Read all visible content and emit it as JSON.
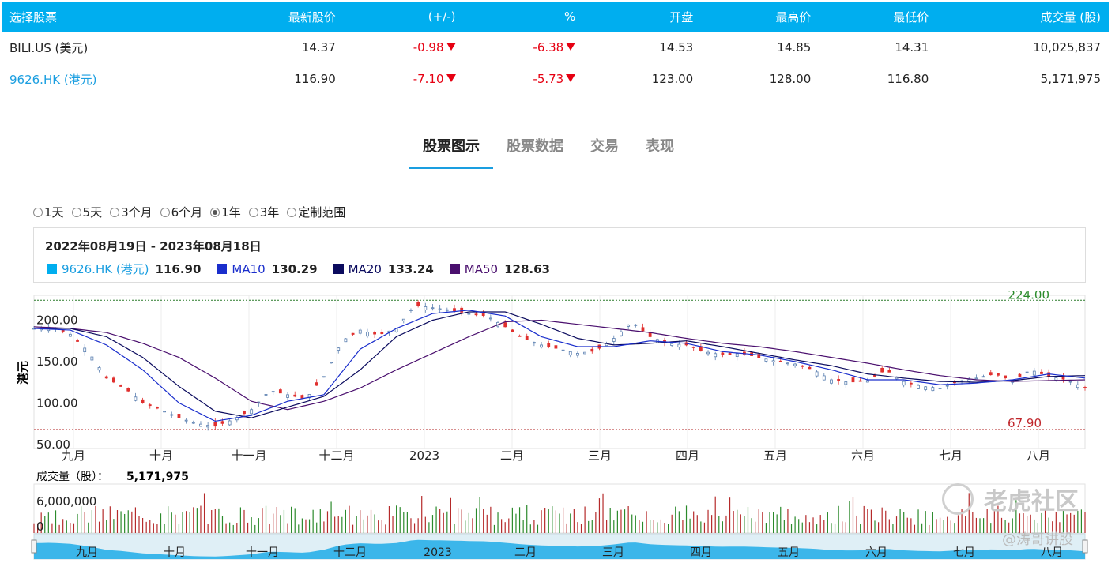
{
  "quote_table": {
    "headers": [
      "选择股票",
      "最新股价",
      "(+/-)",
      "%",
      "开盘",
      "最高价",
      "最低价",
      "成交量 (股)"
    ],
    "rows": [
      {
        "symbol": "BILI.US (美元)",
        "last": "14.37",
        "change": "-0.98",
        "pct": "-6.38",
        "open": "14.53",
        "high": "14.85",
        "low": "14.31",
        "volume": "10,025,837"
      },
      {
        "symbol": "9626.HK (港元)",
        "last": "116.90",
        "change": "-7.10",
        "pct": "-5.73",
        "open": "123.00",
        "high": "128.00",
        "low": "116.80",
        "volume": "5,171,975"
      }
    ]
  },
  "tabs": [
    "股票图示",
    "股票数据",
    "交易",
    "表现"
  ],
  "active_tab": "股票图示",
  "ranges": [
    "1天",
    "5天",
    "3个月",
    "6个月",
    "1年",
    "3年",
    "定制范围"
  ],
  "selected_range": "1年",
  "date_range": "2022年08月19日 - 2023年08月18日",
  "legend": [
    {
      "name": "9626.HK (港元)",
      "value": "116.90",
      "color": "#00aeef",
      "text_color": "#1a9ee0"
    },
    {
      "name": "MA10",
      "value": "130.29",
      "color": "#1a2ecc",
      "text_color": "#1a2ecc"
    },
    {
      "name": "MA20",
      "value": "133.24",
      "color": "#0b0b5e",
      "text_color": "#0b0b5e"
    },
    {
      "name": "MA50",
      "value": "128.63",
      "color": "#4a0f6e",
      "text_color": "#4a0f6e"
    }
  ],
  "volume_label": "成交量（股）：",
  "volume_value": "5,171,975",
  "watermark": {
    "brand": "老虎社区",
    "author": "@涛哥讲股"
  },
  "chart_data": {
    "type": "line",
    "ylabel": "港元",
    "yticks": [
      "200.00",
      "150.00",
      "100.00",
      "50.00"
    ],
    "ylim": [
      45,
      230
    ],
    "max_label": "224.00",
    "min_label": "67.90",
    "max_value": 224.0,
    "min_value": 67.9,
    "xticks": [
      "九月",
      "十月",
      "十一月",
      "十二月",
      "2023",
      "二月",
      "三月",
      "四月",
      "五月",
      "六月",
      "七月",
      "八月"
    ],
    "nav_xticks": [
      "九月",
      "十月",
      "十一月",
      "十二月",
      "2023",
      "二月",
      "三月",
      "四月",
      "五月",
      "六月",
      "七月",
      "八月"
    ],
    "volume_yticks": [
      "6,000,000",
      "0"
    ],
    "price_anchors": [
      [
        0,
        190
      ],
      [
        5,
        192
      ],
      [
        10,
        183
      ],
      [
        15,
        162
      ],
      [
        20,
        130
      ],
      [
        25,
        118
      ],
      [
        30,
        100
      ],
      [
        35,
        92
      ],
      [
        40,
        82
      ],
      [
        45,
        75
      ],
      [
        50,
        72
      ],
      [
        55,
        80
      ],
      [
        60,
        92
      ],
      [
        65,
        115
      ],
      [
        70,
        110
      ],
      [
        75,
        105
      ],
      [
        80,
        132
      ],
      [
        85,
        175
      ],
      [
        90,
        188
      ],
      [
        95,
        182
      ],
      [
        100,
        190
      ],
      [
        105,
        218
      ],
      [
        110,
        215
      ],
      [
        115,
        212
      ],
      [
        120,
        208
      ],
      [
        125,
        205
      ],
      [
        130,
        192
      ],
      [
        135,
        178
      ],
      [
        140,
        170
      ],
      [
        145,
        165
      ],
      [
        150,
        160
      ],
      [
        155,
        163
      ],
      [
        160,
        178
      ],
      [
        165,
        198
      ],
      [
        170,
        180
      ],
      [
        175,
        172
      ],
      [
        180,
        170
      ],
      [
        185,
        162
      ],
      [
        190,
        158
      ],
      [
        195,
        160
      ],
      [
        200,
        155
      ],
      [
        205,
        150
      ],
      [
        210,
        147
      ],
      [
        215,
        140
      ],
      [
        220,
        128
      ],
      [
        225,
        125
      ],
      [
        230,
        127
      ],
      [
        235,
        140
      ],
      [
        240,
        126
      ],
      [
        245,
        120
      ],
      [
        250,
        118
      ],
      [
        255,
        126
      ],
      [
        260,
        130
      ],
      [
        265,
        135
      ],
      [
        270,
        127
      ],
      [
        275,
        140
      ],
      [
        280,
        132
      ],
      [
        285,
        128
      ],
      [
        290,
        118
      ]
    ],
    "ma10_anchors": [
      [
        0,
        190
      ],
      [
        10,
        188
      ],
      [
        20,
        170
      ],
      [
        30,
        140
      ],
      [
        40,
        100
      ],
      [
        50,
        78
      ],
      [
        60,
        85
      ],
      [
        70,
        102
      ],
      [
        80,
        110
      ],
      [
        90,
        165
      ],
      [
        100,
        190
      ],
      [
        110,
        208
      ],
      [
        120,
        212
      ],
      [
        130,
        205
      ],
      [
        140,
        180
      ],
      [
        150,
        168
      ],
      [
        160,
        168
      ],
      [
        170,
        175
      ],
      [
        180,
        172
      ],
      [
        190,
        162
      ],
      [
        200,
        158
      ],
      [
        210,
        150
      ],
      [
        220,
        140
      ],
      [
        230,
        128
      ],
      [
        240,
        128
      ],
      [
        250,
        122
      ],
      [
        260,
        124
      ],
      [
        270,
        128
      ],
      [
        280,
        135
      ],
      [
        290,
        130
      ]
    ],
    "ma20_anchors": [
      [
        0,
        190
      ],
      [
        10,
        190
      ],
      [
        20,
        180
      ],
      [
        30,
        155
      ],
      [
        40,
        120
      ],
      [
        50,
        90
      ],
      [
        60,
        82
      ],
      [
        70,
        95
      ],
      [
        80,
        108
      ],
      [
        90,
        140
      ],
      [
        100,
        180
      ],
      [
        110,
        200
      ],
      [
        120,
        210
      ],
      [
        130,
        210
      ],
      [
        140,
        195
      ],
      [
        150,
        178
      ],
      [
        160,
        170
      ],
      [
        170,
        172
      ],
      [
        180,
        175
      ],
      [
        190,
        168
      ],
      [
        200,
        160
      ],
      [
        210,
        152
      ],
      [
        220,
        145
      ],
      [
        230,
        135
      ],
      [
        240,
        130
      ],
      [
        250,
        126
      ],
      [
        260,
        125
      ],
      [
        270,
        127
      ],
      [
        280,
        132
      ],
      [
        290,
        133
      ]
    ],
    "ma50_anchors": [
      [
        0,
        192
      ],
      [
        10,
        190
      ],
      [
        20,
        185
      ],
      [
        30,
        172
      ],
      [
        40,
        155
      ],
      [
        50,
        130
      ],
      [
        60,
        102
      ],
      [
        70,
        92
      ],
      [
        80,
        102
      ],
      [
        90,
        118
      ],
      [
        100,
        140
      ],
      [
        110,
        160
      ],
      [
        120,
        180
      ],
      [
        130,
        198
      ],
      [
        140,
        200
      ],
      [
        150,
        195
      ],
      [
        160,
        190
      ],
      [
        170,
        185
      ],
      [
        180,
        178
      ],
      [
        190,
        172
      ],
      [
        200,
        168
      ],
      [
        210,
        162
      ],
      [
        220,
        155
      ],
      [
        230,
        148
      ],
      [
        240,
        140
      ],
      [
        250,
        133
      ],
      [
        260,
        128
      ],
      [
        270,
        126
      ],
      [
        280,
        127
      ],
      [
        290,
        128
      ]
    ]
  }
}
